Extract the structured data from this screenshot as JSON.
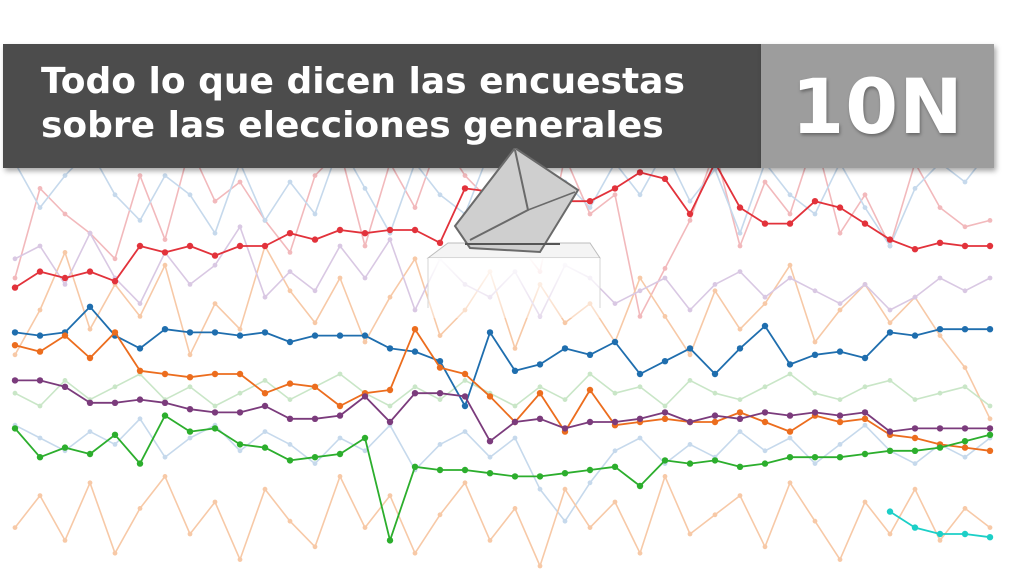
{
  "header": {
    "title_line1": "Todo lo que dicen las encuestas",
    "title_line2": "sobre las elecciones generales",
    "badge": "10N"
  },
  "icons": {
    "ballot_box": "ballot-box-icon"
  },
  "colors": {
    "title_bg": "#4c4c4c",
    "badge_bg": "#9d9d9d",
    "text": "#ffffff"
  },
  "chart_data": {
    "type": "line",
    "x": [
      1,
      2,
      3,
      4,
      5,
      6,
      7,
      8,
      9,
      10,
      11,
      12,
      13,
      14,
      15,
      16,
      17,
      18,
      19,
      20,
      21,
      22,
      23,
      24,
      25,
      26,
      27,
      28,
      29,
      30,
      31,
      32,
      33,
      34,
      35,
      36,
      37,
      38,
      39,
      40
    ],
    "ylim": [
      0,
      100
    ],
    "grid": false,
    "series": [
      {
        "color": "#e2323b",
        "values": [
          57,
          62,
          60,
          62,
          59,
          70,
          68,
          70,
          67,
          70,
          70,
          74,
          72,
          75,
          74,
          75,
          75,
          71,
          88,
          87,
          84,
          90,
          84,
          84,
          88,
          93,
          91,
          80,
          96,
          82,
          77,
          77,
          84,
          82,
          77,
          72,
          69,
          71,
          70,
          70
        ]
      },
      {
        "color": "#1f6eae",
        "values": [
          43,
          42,
          43,
          51,
          42,
          38,
          44,
          43,
          43,
          42,
          43,
          40,
          42,
          42,
          42,
          38,
          37,
          34,
          20,
          43,
          31,
          33,
          38,
          36,
          40,
          30,
          34,
          38,
          30,
          38,
          45,
          33,
          36,
          37,
          35,
          43,
          42,
          44,
          44,
          44
        ]
      },
      {
        "color": "#ec6d1e",
        "values": [
          39,
          37,
          42,
          35,
          43,
          31,
          30,
          29,
          30,
          30,
          24,
          27,
          26,
          20,
          24,
          25,
          44,
          32,
          30,
          23,
          15,
          24,
          12,
          25,
          14,
          15,
          16,
          15,
          15,
          18,
          15,
          12,
          17,
          15,
          16,
          11,
          10,
          8,
          7,
          6
        ]
      },
      {
        "color": "#7b3b7c",
        "values": [
          28,
          28,
          26,
          21,
          21,
          22,
          21,
          19,
          18,
          18,
          20,
          16,
          16,
          17,
          23,
          15,
          24,
          24,
          23,
          9,
          15,
          16,
          13,
          15,
          15,
          16,
          18,
          15,
          17,
          16,
          18,
          17,
          18,
          17,
          18,
          12,
          13,
          13,
          13,
          13
        ]
      },
      {
        "color": "#2cae2d",
        "values": [
          13,
          4,
          7,
          5,
          11,
          2,
          17,
          12,
          13,
          8,
          7,
          3,
          4,
          5,
          10,
          -22,
          1,
          0,
          0,
          -1,
          -2,
          -2,
          -1,
          0,
          1,
          -5,
          3,
          2,
          3,
          1,
          2,
          4,
          4,
          4,
          5,
          6,
          6,
          7,
          9,
          11
        ]
      },
      {
        "color": "#1ccfc7",
        "values": [
          null,
          null,
          null,
          null,
          null,
          null,
          null,
          null,
          null,
          null,
          null,
          null,
          null,
          null,
          null,
          null,
          null,
          null,
          null,
          null,
          null,
          null,
          null,
          null,
          null,
          null,
          null,
          null,
          null,
          null,
          null,
          null,
          null,
          null,
          null,
          -13,
          -18,
          -20,
          -20,
          -21
        ]
      }
    ],
    "background_series": [
      {
        "color": "#f2b9bc",
        "values": [
          60,
          88,
          80,
          74,
          66,
          92,
          72,
          101,
          84,
          90,
          78,
          68,
          92,
          100,
          70,
          96,
          82,
          104,
          92,
          84,
          72,
          62,
          98,
          80,
          86,
          48,
          63,
          78,
          100,
          70,
          90,
          80,
          104,
          74,
          86,
          70,
          96,
          82,
          76,
          78
        ]
      },
      {
        "color": "#c6d9ec",
        "values": [
          96,
          82,
          92,
          100,
          86,
          78,
          92,
          86,
          74,
          96,
          78,
          90,
          80,
          102,
          88,
          74,
          96,
          86,
          80,
          100,
          84,
          74,
          90,
          82,
          96,
          86,
          100,
          84,
          94,
          74,
          96,
          86,
          80,
          96,
          82,
          70,
          88,
          96,
          90,
          100
        ]
      },
      {
        "color": "#f7c9a7",
        "values": [
          36,
          50,
          68,
          44,
          58,
          48,
          64,
          36,
          52,
          44,
          70,
          56,
          46,
          60,
          40,
          54,
          66,
          42,
          50,
          62,
          38,
          58,
          46,
          52,
          40,
          60,
          48,
          36,
          56,
          44,
          52,
          64,
          40,
          50,
          58,
          46,
          54,
          42,
          32,
          16
        ]
      },
      {
        "color": "#d9c8e3",
        "values": [
          66,
          70,
          58,
          74,
          60,
          52,
          68,
          58,
          64,
          76,
          54,
          62,
          56,
          70,
          60,
          72,
          50,
          66,
          58,
          54,
          62,
          48,
          64,
          60,
          52,
          56,
          60,
          50,
          58,
          62,
          54,
          60,
          56,
          52,
          58,
          50,
          54,
          60,
          56,
          60
        ]
      },
      {
        "color": "#c9e6c7",
        "values": [
          24,
          20,
          28,
          22,
          26,
          30,
          22,
          26,
          20,
          24,
          28,
          22,
          26,
          30,
          24,
          20,
          26,
          22,
          28,
          24,
          20,
          26,
          22,
          30,
          24,
          26,
          20,
          28,
          24,
          22,
          26,
          30,
          24,
          22,
          26,
          28,
          22,
          24,
          26,
          20
        ]
      },
      {
        "color": "#c6d9ec",
        "values": [
          14,
          10,
          6,
          12,
          8,
          16,
          4,
          10,
          14,
          6,
          12,
          8,
          2,
          10,
          6,
          14,
          0,
          8,
          12,
          4,
          10,
          -6,
          -16,
          -4,
          6,
          10,
          2,
          8,
          4,
          12,
          6,
          10,
          2,
          8,
          14,
          6,
          2,
          8,
          4,
          10
        ]
      },
      {
        "color": "#f7c9a7",
        "values": [
          -18,
          -8,
          -22,
          -4,
          -26,
          -12,
          -2,
          -20,
          -10,
          -28,
          -6,
          -16,
          -24,
          -2,
          -18,
          -8,
          -26,
          -14,
          -4,
          -22,
          -12,
          -30,
          -6,
          -18,
          -10,
          -26,
          -2,
          -20,
          -14,
          -8,
          -24,
          -4,
          -16,
          -28,
          -10,
          -20,
          -6,
          -22,
          -12,
          -18
        ]
      }
    ]
  }
}
